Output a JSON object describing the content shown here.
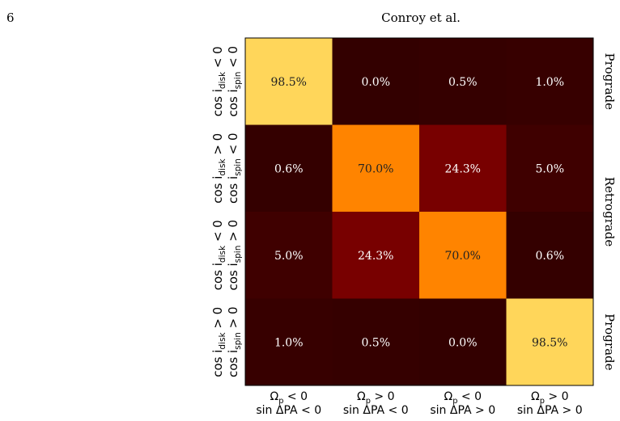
{
  "page": {
    "number": "6",
    "running_head": "Conroy et al."
  },
  "chart_data": {
    "type": "heatmap",
    "rows": [
      {
        "lines": [
          {
            "text": "cos i",
            "sub": "disk",
            "tail": " < 0"
          },
          {
            "text": "cos i",
            "sub": "spin",
            "tail": " < 0"
          }
        ]
      },
      {
        "lines": [
          {
            "text": "cos i",
            "sub": "disk",
            "tail": " > 0"
          },
          {
            "text": "cos i",
            "sub": "spin",
            "tail": " < 0"
          }
        ]
      },
      {
        "lines": [
          {
            "text": "cos i",
            "sub": "disk",
            "tail": " < 0"
          },
          {
            "text": "cos i",
            "sub": "spin",
            "tail": " > 0"
          }
        ]
      },
      {
        "lines": [
          {
            "text": "cos i",
            "sub": "disk",
            "tail": " > 0"
          },
          {
            "text": "cos i",
            "sub": "spin",
            "tail": " > 0"
          }
        ]
      }
    ],
    "columns": [
      {
        "lines": [
          {
            "text": "Ω",
            "sub": "p",
            "tail": " < 0"
          },
          {
            "text": "sin ΔPA < 0"
          }
        ]
      },
      {
        "lines": [
          {
            "text": "Ω",
            "sub": "p",
            "tail": " > 0"
          },
          {
            "text": "sin ΔPA < 0"
          }
        ]
      },
      {
        "lines": [
          {
            "text": "Ω",
            "sub": "p",
            "tail": " < 0"
          },
          {
            "text": "sin ΔPA > 0"
          }
        ]
      },
      {
        "lines": [
          {
            "text": "Ω",
            "sub": "p",
            "tail": " > 0"
          },
          {
            "text": "sin ΔPA > 0"
          }
        ]
      }
    ],
    "values": [
      [
        98.5,
        0.0,
        0.5,
        1.0
      ],
      [
        0.6,
        70.0,
        24.3,
        5.0
      ],
      [
        5.0,
        24.3,
        70.0,
        0.6
      ],
      [
        1.0,
        0.5,
        0.0,
        98.5
      ]
    ],
    "value_labels": [
      [
        "98.5%",
        "0.0%",
        "0.5%",
        "1.0%"
      ],
      [
        "0.6%",
        "70.0%",
        "24.3%",
        "5.0%"
      ],
      [
        "5.0%",
        "24.3%",
        "70.0%",
        "0.6%"
      ],
      [
        "1.0%",
        "0.5%",
        "0.0%",
        "98.5%"
      ]
    ],
    "colors": [
      [
        "#ffd65a",
        "#330000",
        "#350000",
        "#370000"
      ],
      [
        "#340000",
        "#ff8400",
        "#780000",
        "#3f0000"
      ],
      [
        "#3f0000",
        "#780000",
        "#ff8400",
        "#340000"
      ],
      [
        "#370000",
        "#350000",
        "#330000",
        "#ffd65a"
      ]
    ],
    "side_labels": [
      "Prograde",
      "Retrograde",
      "Prograde"
    ]
  }
}
